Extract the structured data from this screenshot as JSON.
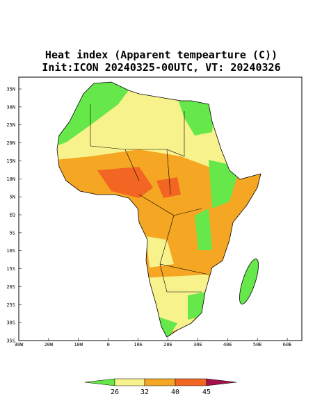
{
  "header": {
    "title_lines": [
      "Heat index (Apparent tempearture (C))",
      "Init:ICON 20240325-00UTC, VT: 20240326"
    ]
  },
  "axes": {
    "lat_labels": [
      "35N",
      "30N",
      "25N",
      "20N",
      "15N",
      "10N",
      "5N",
      "EQ",
      "5S",
      "10S",
      "15S",
      "20S",
      "25S",
      "30S",
      "35S"
    ],
    "lon_labels": [
      "30W",
      "20W",
      "10W",
      "0",
      "10E",
      "20E",
      "30E",
      "40E",
      "50E",
      "60E"
    ]
  },
  "colorbar": {
    "labels": [
      26,
      32,
      40,
      45
    ]
  }
}
